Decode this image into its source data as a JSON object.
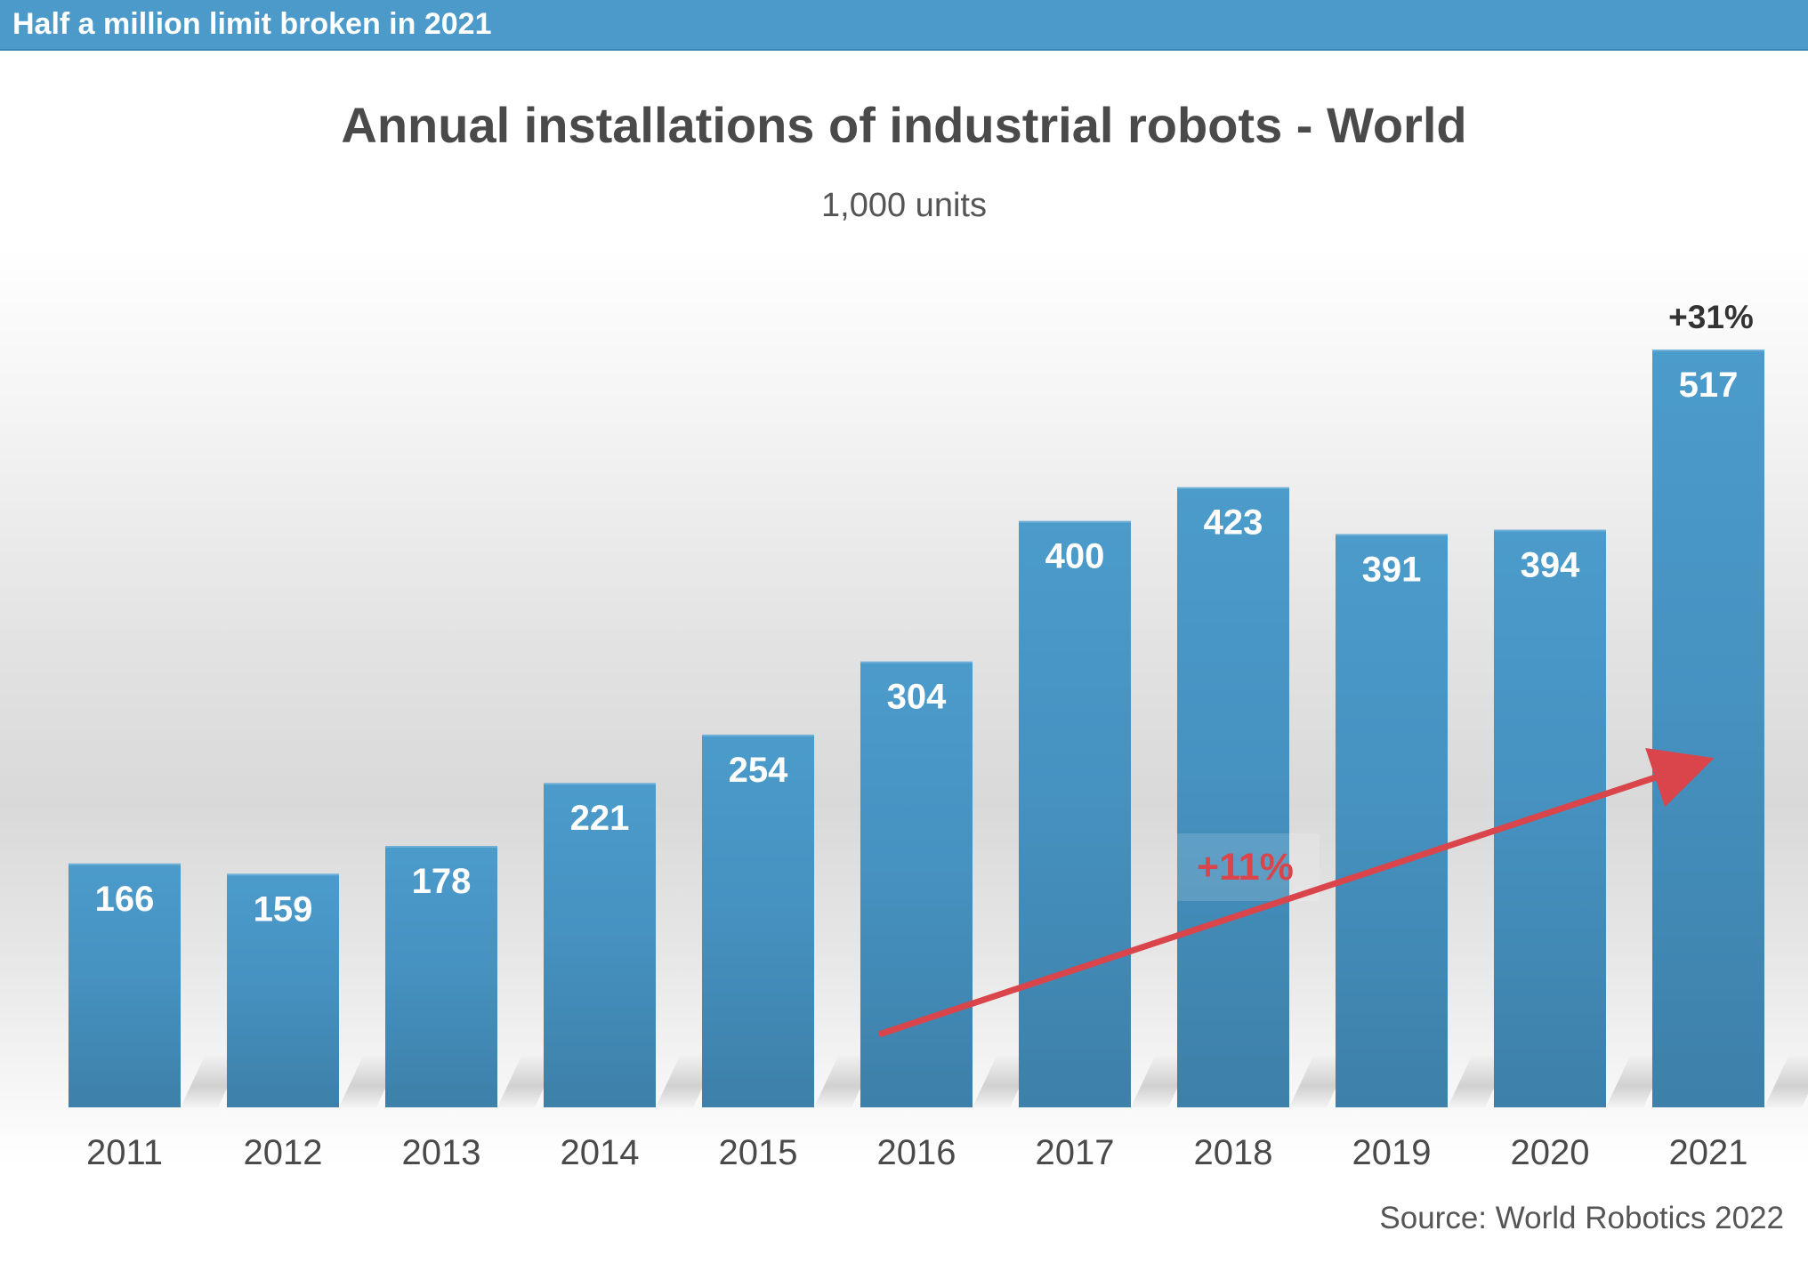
{
  "banner": {
    "text": "Half a million limit broken in 2021"
  },
  "chart_data": {
    "type": "bar",
    "title": "Annual installations of industrial robots - World",
    "subtitle": "1,000 units",
    "categories": [
      "2011",
      "2012",
      "2013",
      "2014",
      "2015",
      "2016",
      "2017",
      "2018",
      "2019",
      "2020",
      "2021"
    ],
    "values": [
      166,
      159,
      178,
      221,
      254,
      304,
      400,
      423,
      391,
      394,
      517
    ],
    "data_labels": [
      "166",
      "159",
      "178",
      "221",
      "254",
      "304",
      "400",
      "423",
      "391",
      "394",
      "517"
    ],
    "ylim": [
      0,
      517
    ],
    "grid": false,
    "bar_color": "#4a98c8",
    "annotations": [
      {
        "text": "+31%",
        "color": "#333333",
        "anchor": "2021"
      },
      {
        "text": "+11%",
        "color": "#d9454b",
        "trend_from": "2016",
        "trend_to": "2021"
      }
    ],
    "source": "Source: World Robotics 2022"
  }
}
